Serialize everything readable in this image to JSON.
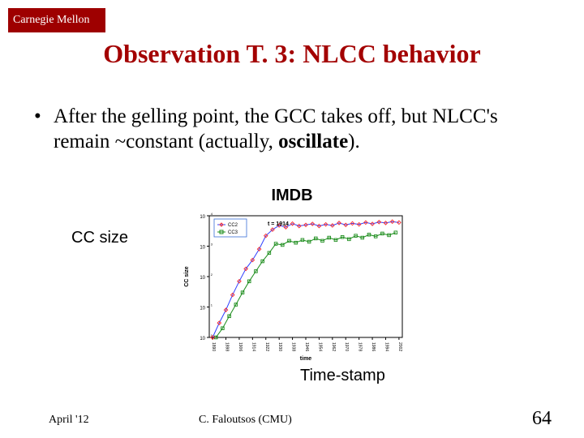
{
  "logo_text": "Carnegie Mellon",
  "title": "Observation T. 3: NLCC behavior",
  "bullet": {
    "dot": "•",
    "text_prefix": "After the gelling point, the GCC takes off, but NLCC's remain ~constant (actually, ",
    "text_bold": "oscillate",
    "text_suffix": "). "
  },
  "chart": {
    "title": "IMDB",
    "y_label_text": "CC size",
    "x_label_text": "Time-stamp",
    "axis_label_small_y": "CC size",
    "axis_label_small_x": "time",
    "y_ticks": [
      "10^0",
      "10^1",
      "10^2",
      "10^3",
      "10^4"
    ],
    "x_ticks": [
      "1890",
      "1898",
      "1906",
      "1914",
      "1922",
      "1930",
      "1938",
      "1946",
      "1954",
      "1962",
      "1970",
      "1978",
      "1986",
      "1994",
      "2002"
    ],
    "legend": {
      "items": [
        "CC2",
        "CC3"
      ],
      "box_border": "#3a6fd8"
    },
    "caption_inside": "t = 1914",
    "colors": {
      "axes": "#000000",
      "cc2_line": "#2e3eff",
      "cc2_marker": "#ff2a2a",
      "cc3_line": "#1b8c1b",
      "cc3_marker": "#1b8c1b",
      "background": "#ffffff"
    },
    "series_cc2": [
      {
        "x": 1890,
        "y": 1
      },
      {
        "x": 1894,
        "y": 3
      },
      {
        "x": 1898,
        "y": 8
      },
      {
        "x": 1902,
        "y": 25
      },
      {
        "x": 1906,
        "y": 70
      },
      {
        "x": 1910,
        "y": 180
      },
      {
        "x": 1914,
        "y": 350
      },
      {
        "x": 1918,
        "y": 800
      },
      {
        "x": 1922,
        "y": 2200
      },
      {
        "x": 1926,
        "y": 3500
      },
      {
        "x": 1930,
        "y": 4800
      },
      {
        "x": 1934,
        "y": 4200
      },
      {
        "x": 1938,
        "y": 5500
      },
      {
        "x": 1942,
        "y": 4600
      },
      {
        "x": 1946,
        "y": 5000
      },
      {
        "x": 1950,
        "y": 5400
      },
      {
        "x": 1954,
        "y": 4600
      },
      {
        "x": 1958,
        "y": 5200
      },
      {
        "x": 1962,
        "y": 4800
      },
      {
        "x": 1966,
        "y": 5800
      },
      {
        "x": 1970,
        "y": 5000
      },
      {
        "x": 1974,
        "y": 5600
      },
      {
        "x": 1978,
        "y": 5200
      },
      {
        "x": 1982,
        "y": 6000
      },
      {
        "x": 1986,
        "y": 5400
      },
      {
        "x": 1990,
        "y": 6200
      },
      {
        "x": 1994,
        "y": 5800
      },
      {
        "x": 1998,
        "y": 6400
      },
      {
        "x": 2002,
        "y": 6000
      }
    ],
    "series_cc3": [
      {
        "x": 1892,
        "y": 1
      },
      {
        "x": 1896,
        "y": 2
      },
      {
        "x": 1900,
        "y": 5
      },
      {
        "x": 1904,
        "y": 12
      },
      {
        "x": 1908,
        "y": 30
      },
      {
        "x": 1912,
        "y": 70
      },
      {
        "x": 1916,
        "y": 150
      },
      {
        "x": 1920,
        "y": 320
      },
      {
        "x": 1924,
        "y": 600
      },
      {
        "x": 1928,
        "y": 1200
      },
      {
        "x": 1932,
        "y": 1100
      },
      {
        "x": 1936,
        "y": 1500
      },
      {
        "x": 1940,
        "y": 1300
      },
      {
        "x": 1944,
        "y": 1600
      },
      {
        "x": 1948,
        "y": 1400
      },
      {
        "x": 1952,
        "y": 1800
      },
      {
        "x": 1956,
        "y": 1500
      },
      {
        "x": 1960,
        "y": 1900
      },
      {
        "x": 1964,
        "y": 1600
      },
      {
        "x": 1968,
        "y": 2000
      },
      {
        "x": 1972,
        "y": 1700
      },
      {
        "x": 1976,
        "y": 2200
      },
      {
        "x": 1980,
        "y": 1900
      },
      {
        "x": 1984,
        "y": 2400
      },
      {
        "x": 1988,
        "y": 2100
      },
      {
        "x": 1992,
        "y": 2600
      },
      {
        "x": 1996,
        "y": 2300
      },
      {
        "x": 2000,
        "y": 2800
      }
    ],
    "xlim": [
      1888,
      2004
    ],
    "ylim_log10": [
      0,
      4
    ]
  },
  "footer": {
    "left": "April '12",
    "center": "C. Faloutsos (CMU)",
    "page": "64"
  }
}
